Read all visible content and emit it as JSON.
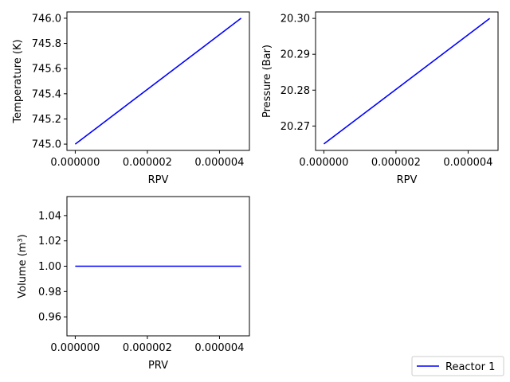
{
  "chart_data": [
    {
      "type": "line",
      "xlabel": "RPV",
      "ylabel": "Temperature (K)",
      "xlim": [
        -2.3e-07,
        4.83e-06
      ],
      "ylim": [
        744.95,
        746.05
      ],
      "xticks": [
        0,
        2e-06,
        4e-06
      ],
      "xtick_labels": [
        "0.000000",
        "0.000002",
        "0.000004"
      ],
      "yticks": [
        745.0,
        745.2,
        745.4,
        745.6,
        745.8,
        746.0
      ],
      "ytick_labels": [
        "745.0",
        "745.2",
        "745.4",
        "745.6",
        "745.8",
        "746.0"
      ],
      "series": [
        {
          "name": "Reactor 1",
          "color": "#0000ff",
          "x": [
            0,
            4.6e-06
          ],
          "y": [
            745.0,
            746.0
          ]
        }
      ]
    },
    {
      "type": "line",
      "xlabel": "RPV",
      "ylabel": "Pressure (Bar)",
      "xlim": [
        -2.3e-07,
        4.83e-06
      ],
      "ylim": [
        20.2632,
        20.3018
      ],
      "xticks": [
        0,
        2e-06,
        4e-06
      ],
      "xtick_labels": [
        "0.000000",
        "0.000002",
        "0.000004"
      ],
      "yticks": [
        20.27,
        20.28,
        20.29,
        20.3
      ],
      "ytick_labels": [
        "20.27",
        "20.28",
        "20.29",
        "20.30"
      ],
      "series": [
        {
          "name": "Reactor 1",
          "color": "#0000ff",
          "x": [
            0,
            4.6e-06
          ],
          "y": [
            20.265,
            20.3
          ]
        }
      ]
    },
    {
      "type": "line",
      "xlabel": "PRV",
      "ylabel": "Volume (m³)",
      "xlim": [
        -2.3e-07,
        4.83e-06
      ],
      "ylim": [
        0.945,
        1.055
      ],
      "xticks": [
        0,
        2e-06,
        4e-06
      ],
      "xtick_labels": [
        "0.000000",
        "0.000002",
        "0.000004"
      ],
      "yticks": [
        0.96,
        0.98,
        1.0,
        1.02,
        1.04
      ],
      "ytick_labels": [
        "0.96",
        "0.98",
        "1.00",
        "1.02",
        "1.04"
      ],
      "series": [
        {
          "name": "Reactor 1",
          "color": "#0000ff",
          "x": [
            0,
            4.6e-06
          ],
          "y": [
            1.0,
            1.0
          ]
        }
      ]
    }
  ],
  "legend": {
    "placement": "bottom-right",
    "entries": [
      {
        "label": "Reactor 1",
        "color": "#0000ff"
      }
    ]
  }
}
